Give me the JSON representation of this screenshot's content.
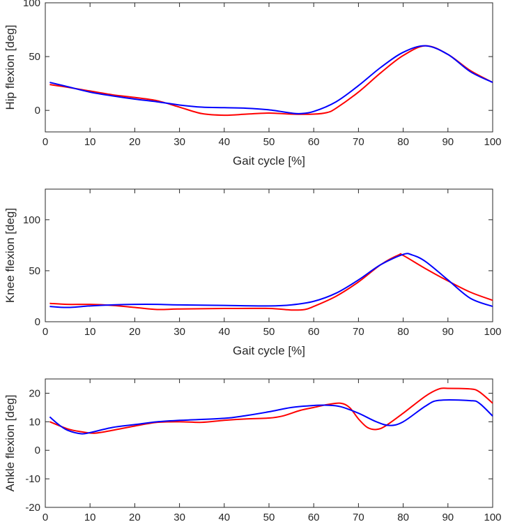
{
  "chart_data": [
    {
      "type": "line",
      "xlabel": "Gait cycle [%]",
      "ylabel": "Hip flexion [deg]",
      "xlim": [
        0,
        100
      ],
      "ylim": [
        -20,
        100
      ],
      "xticks": [
        0,
        10,
        20,
        30,
        40,
        50,
        60,
        70,
        80,
        90,
        100
      ],
      "yticks": [
        0,
        50,
        100
      ],
      "grid": false,
      "series": [
        {
          "color": "#ff0000",
          "x": [
            1,
            5,
            10,
            15,
            20,
            25,
            30,
            35,
            40,
            45,
            50,
            55,
            60,
            63,
            65,
            70,
            75,
            80,
            85,
            90,
            95,
            100
          ],
          "y": [
            24,
            21.5,
            18,
            14.5,
            12,
            9,
            3,
            -3,
            -4.5,
            -3.5,
            -2.5,
            -3.5,
            -3.5,
            -2,
            2,
            17,
            35,
            51,
            60,
            52,
            37,
            26
          ]
        },
        {
          "color": "#0000ff",
          "x": [
            1,
            5,
            10,
            15,
            20,
            25,
            30,
            35,
            40,
            45,
            50,
            55,
            57,
            60,
            65,
            70,
            75,
            80,
            85,
            90,
            95,
            100
          ],
          "y": [
            26,
            22,
            17,
            13.5,
            10.5,
            8,
            5,
            3,
            2.5,
            2,
            0.5,
            -2.5,
            -3,
            -1,
            8,
            23,
            40,
            54,
            60,
            52,
            36,
            26
          ]
        }
      ]
    },
    {
      "type": "line",
      "xlabel": "Gait cycle [%]",
      "ylabel": "Knee flexion [deg]",
      "xlim": [
        0,
        100
      ],
      "ylim": [
        0,
        130
      ],
      "xticks": [
        0,
        10,
        20,
        30,
        40,
        50,
        60,
        70,
        80,
        90,
        100
      ],
      "yticks": [
        0,
        50,
        100
      ],
      "grid": false,
      "series": [
        {
          "color": "#ff0000",
          "x": [
            1,
            5,
            10,
            15,
            20,
            25,
            30,
            40,
            50,
            55,
            58,
            60,
            65,
            70,
            75,
            79,
            80,
            85,
            90,
            95,
            100
          ],
          "y": [
            18,
            17,
            17,
            16,
            14,
            12,
            12.5,
            13,
            13,
            11.5,
            12,
            15,
            25,
            39,
            56,
            65.5,
            65,
            52,
            40,
            29,
            21
          ]
        },
        {
          "color": "#0000ff",
          "x": [
            1,
            5,
            10,
            15,
            20,
            25,
            30,
            40,
            50,
            55,
            60,
            65,
            70,
            75,
            80,
            82,
            85,
            90,
            95,
            100
          ],
          "y": [
            15,
            14,
            15.5,
            16.5,
            17,
            17,
            16.5,
            16,
            15.5,
            16.5,
            20,
            28,
            41,
            56,
            66,
            65.5,
            59,
            41,
            23,
            15
          ]
        }
      ]
    },
    {
      "type": "line",
      "xlabel": "",
      "ylabel": "Ankle flexion [deg]",
      "xlim": [
        0,
        100
      ],
      "ylim": [
        -20,
        25
      ],
      "xticks": [
        0,
        10,
        20,
        30,
        40,
        50,
        60,
        70,
        80,
        90,
        100
      ],
      "yticks": [
        -20,
        -10,
        0,
        10,
        20
      ],
      "grid": false,
      "series": [
        {
          "color": "#ff0000",
          "x": [
            1,
            5,
            8,
            11,
            15,
            20,
            25,
            30,
            35,
            40,
            45,
            50,
            53,
            57,
            60,
            63,
            66,
            68,
            70,
            72,
            74,
            76,
            80,
            85,
            88,
            90,
            95,
            97,
            100
          ],
          "y": [
            10,
            7.5,
            6.5,
            6,
            7,
            8.5,
            9.8,
            10,
            9.8,
            10.5,
            11,
            11.3,
            12,
            14,
            15,
            16,
            16.5,
            15,
            11,
            8,
            7.3,
            8.5,
            13,
            19,
            21.5,
            21.7,
            21.5,
            20.5,
            16.5
          ]
        },
        {
          "color": "#0000ff",
          "x": [
            1,
            3,
            5,
            8,
            10,
            15,
            20,
            25,
            30,
            40,
            45,
            50,
            55,
            60,
            63,
            66,
            70,
            74,
            77,
            80,
            85,
            88,
            95,
            97,
            100
          ],
          "y": [
            11.7,
            9,
            7,
            5.8,
            6.2,
            8,
            9,
            10,
            10.5,
            11.2,
            12.2,
            13.5,
            15,
            15.7,
            15.8,
            15.3,
            13,
            10,
            8.7,
            10,
            15.5,
            17.5,
            17.4,
            16.5,
            12
          ]
        }
      ]
    }
  ]
}
